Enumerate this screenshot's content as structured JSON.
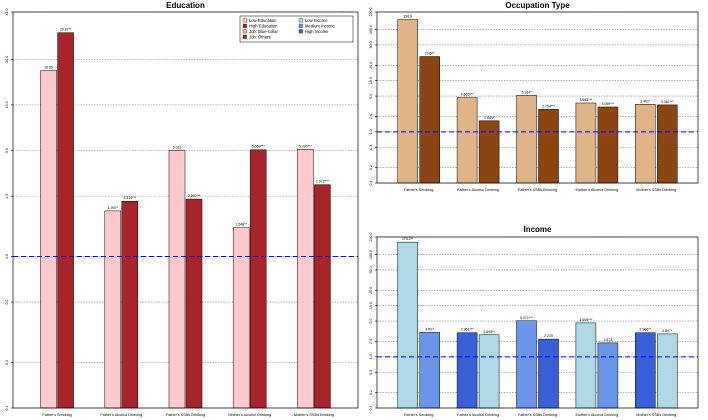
{
  "chart_data": [
    {
      "id": "education",
      "type": "bar",
      "title": "Education",
      "scale": "log",
      "ylim": [
        0.1,
        41.0
      ],
      "yticks": [
        {
          "v": 0.1,
          "t": "0.1"
        },
        {
          "v": 0.2,
          "t": "0.2"
        },
        {
          "v": 0.5,
          "t": "0.5"
        },
        {
          "v": 1.0,
          "t": "1.0"
        },
        {
          "v": 2.5,
          "t": "2.5"
        },
        {
          "v": 5.0,
          "t": "5.0"
        },
        {
          "v": 10.0,
          "t": "10.0"
        },
        {
          "v": 20.0,
          "t": "20.0"
        },
        {
          "v": 41.0,
          "t": "41.0"
        }
      ],
      "reference_line": 1.0,
      "categories": [
        "Father's Smoking",
        "Father's Alcohol Drinking",
        "Father's SSBs Drinking",
        "Mother's Alcohol Drinking",
        "Mother's SSBs Drinking"
      ],
      "series": [
        {
          "name": "Low Education",
          "color": "#ffc9ce",
          "values": [
            16.85,
            1.997,
            5.012,
            1.548,
            5.09
          ],
          "labels": [
            "16.85",
            "1.997*",
            "5.012",
            "1.548**",
            "5.090***"
          ]
        },
        {
          "name": "High Education",
          "color": "#a8242b",
          "values": [
            29.92,
            2.314,
            2.39,
            5.059,
            2.972
          ],
          "labels": [
            "29.92**",
            "2.314***",
            "2.390***",
            "5.059***",
            "2.972***"
          ]
        }
      ],
      "legend": {
        "position": "top-right",
        "entries": [
          {
            "label": "Low Education",
            "color": "#ffc9ce"
          },
          {
            "label": "Low Income",
            "color": "#add8e6"
          },
          {
            "label": "High Education",
            "color": "#a8242b"
          },
          {
            "label": "Medium Income",
            "color": "#6b95e8"
          },
          {
            "label": "Job: Blue-collar",
            "color": "#e0b489"
          },
          {
            "label": "High Income",
            "color": "#3a5fd6"
          },
          {
            "label": "Job: Others",
            "color": "#8b4513"
          }
        ]
      }
    },
    {
      "id": "occupation",
      "type": "bar",
      "title": "Occupation Type",
      "scale": "log",
      "ylim": [
        0.1,
        220.0
      ],
      "yticks": [
        {
          "v": 0.1,
          "t": "0.1"
        },
        {
          "v": 0.2,
          "t": "0.2"
        },
        {
          "v": 0.5,
          "t": "0.5"
        },
        {
          "v": 1.0,
          "t": "1.0"
        },
        {
          "v": 2.0,
          "t": "2.0"
        },
        {
          "v": 5.0,
          "t": "5.0"
        },
        {
          "v": 10.0,
          "t": "10.0"
        },
        {
          "v": 20.0,
          "t": "20.0"
        },
        {
          "v": 50.0,
          "t": "50.0"
        },
        {
          "v": 100.0,
          "t": "100.0"
        },
        {
          "v": 220.0,
          "t": "220.0"
        }
      ],
      "reference_line": 1.0,
      "categories": [
        "Father's Smoking",
        "Father's Alcohol Drinking",
        "Father's SSBs Drinking",
        "Mother's Alcohol Drinking",
        "Mother's SSBs Drinking"
      ],
      "series": [
        {
          "name": "Job: Blue-collar",
          "color": "#e0b489",
          "values": [
            156.9,
            4.665,
            5.164,
            3.663,
            3.461
          ],
          "labels": [
            "156.9",
            "4.665***",
            "5.164*",
            "3.663***",
            "3.461*"
          ]
        },
        {
          "name": "Job: Others",
          "color": "#8b4513",
          "values": [
            29.67,
            1.644,
            2.754,
            3.059,
            3.361
          ],
          "labels": [
            "29.67*",
            "1.644*",
            "2.754***",
            "3.059***",
            "3.361***"
          ]
        }
      ]
    },
    {
      "id": "income",
      "type": "bar",
      "title": "Income",
      "scale": "log",
      "ylim": [
        0.1,
        220.0
      ],
      "yticks": [
        {
          "v": 0.1,
          "t": "0.1"
        },
        {
          "v": 0.2,
          "t": "0.2"
        },
        {
          "v": 0.5,
          "t": "0.5"
        },
        {
          "v": 1.0,
          "t": "1.0"
        },
        {
          "v": 2.0,
          "t": "2.0"
        },
        {
          "v": 5.0,
          "t": "5.0"
        },
        {
          "v": 10.0,
          "t": "10.0"
        },
        {
          "v": 20.0,
          "t": "20.0"
        },
        {
          "v": 50.0,
          "t": "50.0"
        },
        {
          "v": 100.0,
          "t": "100.0"
        },
        {
          "v": 220.0,
          "t": "220.0"
        }
      ],
      "reference_line": 1.0,
      "categories": [
        "Father's Smoking",
        "Father's Alcohol Drinking",
        "Father's SSBs Drinking",
        "Mother's Alcohol Drinking",
        "Mother's SSBs Drinking"
      ],
      "bars_per_category": [
        [
          {
            "series": "Low Income",
            "value": 174.2,
            "label": "174.2**",
            "color": "#add8e6"
          },
          {
            "series": "Medium Income",
            "value": 3.007,
            "label": "3.007",
            "color": "#6b95e8"
          }
        ],
        [
          {
            "series": "High Income",
            "value": 2.961,
            "label": "2.961***",
            "color": "#3a5fd6"
          },
          {
            "series": "Low Income",
            "value": 2.699,
            "label": "2.699**",
            "color": "#add8e6"
          }
        ],
        [
          {
            "series": "Medium Income",
            "value": 5.071,
            "label": "5.071***",
            "color": "#6b95e8"
          },
          {
            "series": "High Income",
            "value": 2.219,
            "label": "2.219",
            "color": "#3a5fd6"
          }
        ],
        [
          {
            "series": "Low Income",
            "value": 4.609,
            "label": "4.609***",
            "color": "#add8e6"
          },
          {
            "series": "Medium Income",
            "value": 1.874,
            "label": "1.874",
            "color": "#6b95e8"
          }
        ],
        [
          {
            "series": "High Income",
            "value": 2.966,
            "label": "2.966**",
            "color": "#3a5fd6"
          },
          {
            "series": "Low Income",
            "value": 2.807,
            "label": "2.807*",
            "color": "#add8e6"
          }
        ]
      ]
    }
  ]
}
